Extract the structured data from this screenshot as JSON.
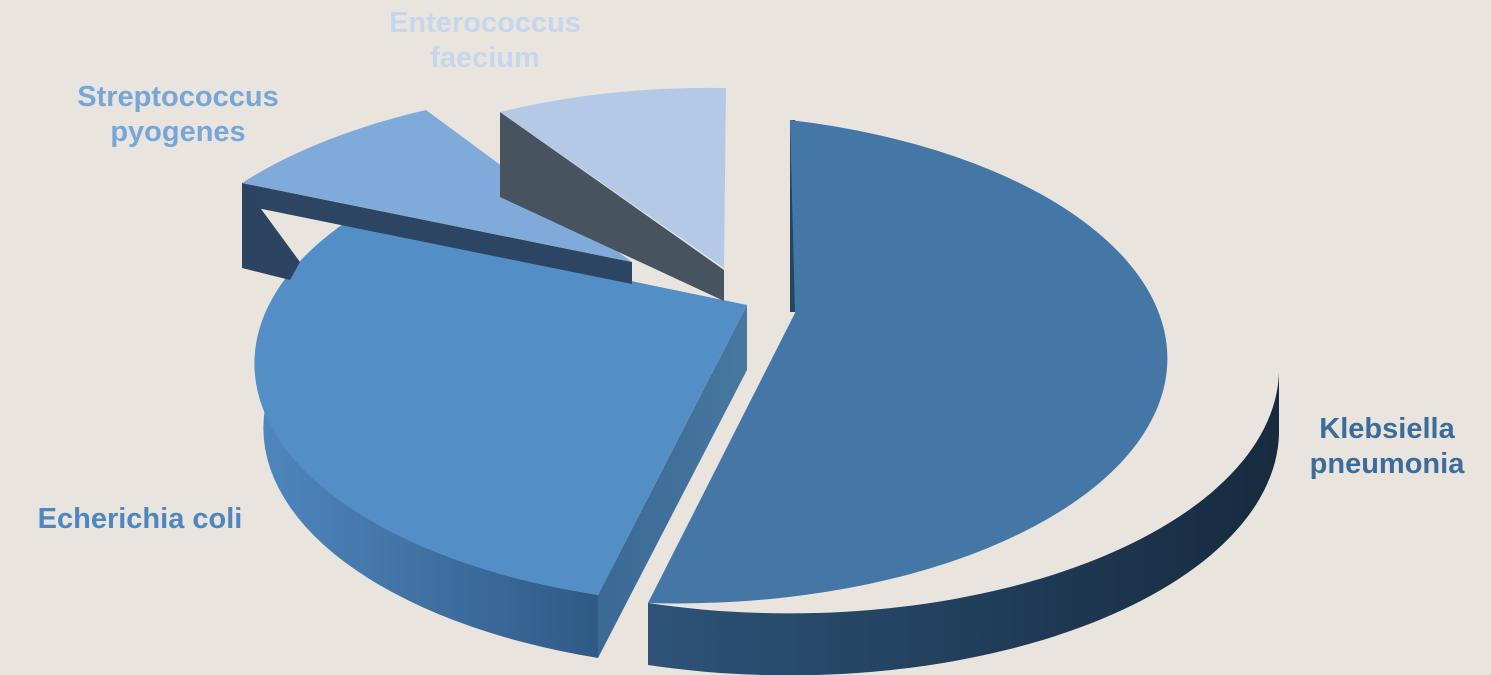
{
  "chart_data": {
    "type": "pie",
    "style": "3d-exploded",
    "slices": [
      {
        "id": "klebsiella",
        "label": "Klebsiella\npneumonia",
        "value": 56,
        "color": "#4477a6"
      },
      {
        "id": "echerichia",
        "label": "Echerichia coli",
        "value": 24,
        "color": "#538fc6"
      },
      {
        "id": "streptococcus",
        "label": "Streptococcus\npyogenes",
        "value": 10,
        "color": "#80aad9"
      },
      {
        "id": "enterococcus",
        "label": "Enterococcus\nfaecium",
        "value": 10,
        "color": "#b4c9e6"
      }
    ],
    "label_colors": {
      "klebsiella": "#3c6c9c",
      "echerichia": "#4e86c0",
      "streptococcus": "#77a6d8",
      "enterococcus": "#c6d6ec"
    },
    "legend": "none"
  }
}
